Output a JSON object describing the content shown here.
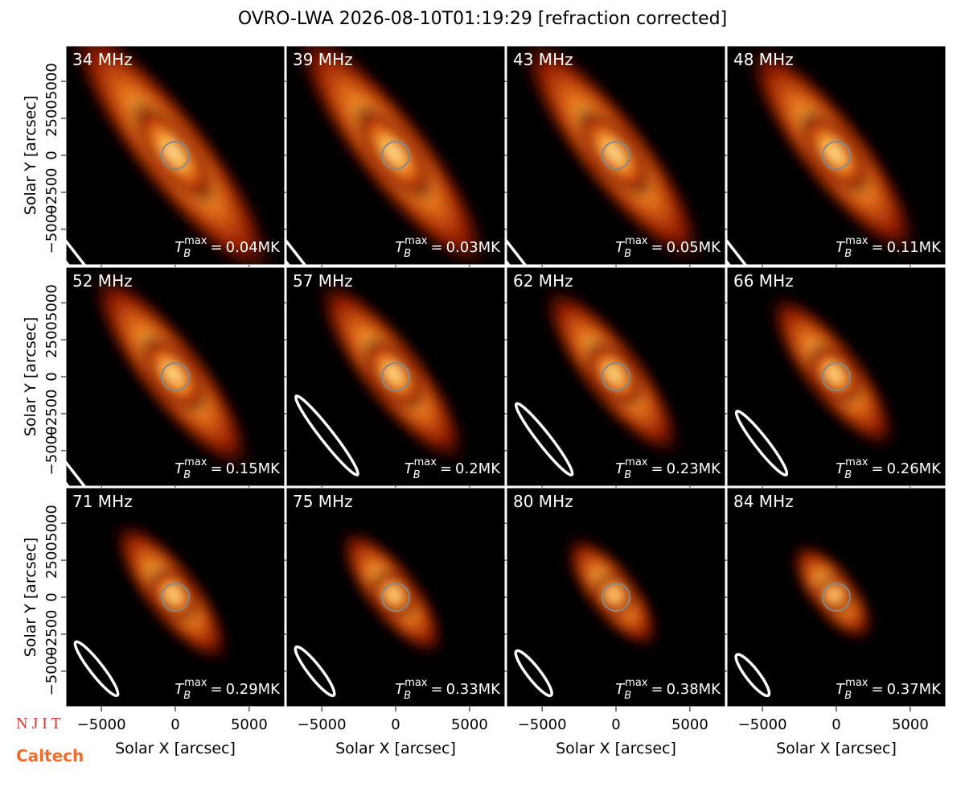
{
  "title": "OVRO-LWA 2026-08-10T01:19:29 [refraction corrected]",
  "xlabel": "Solar X [arcsec]",
  "ylabel": "Solar Y [arcsec]",
  "xlim": [
    -7400,
    7400
  ],
  "ylim": [
    -7400,
    7400
  ],
  "xticks": [
    {
      "value": -5000,
      "label": "−5000"
    },
    0,
    5000
  ],
  "yticks": [
    {
      "value": -5000,
      "label": "−5000"
    },
    {
      "value": -2500,
      "label": "−2500"
    },
    0,
    2500,
    5000
  ],
  "tmax_symbol": "T",
  "tmax_sub": "B",
  "tmax_sup": "max",
  "tmax_eq": "=",
  "panels": [
    {
      "label": "34 MHz",
      "tmax": "0.04MK"
    },
    {
      "label": "39 MHz",
      "tmax": "0.03MK"
    },
    {
      "label": "43 MHz",
      "tmax": "0.05MK"
    },
    {
      "label": "48 MHz",
      "tmax": "0.11MK"
    },
    {
      "label": "52 MHz",
      "tmax": "0.15MK"
    },
    {
      "label": "57 MHz",
      "tmax": "0.2MK"
    },
    {
      "label": "62 MHz",
      "tmax": "0.23MK"
    },
    {
      "label": "66 MHz",
      "tmax": "0.26MK"
    },
    {
      "label": "71 MHz",
      "tmax": "0.29MK"
    },
    {
      "label": "75 MHz",
      "tmax": "0.33MK"
    },
    {
      "label": "80 MHz",
      "tmax": "0.38MK"
    },
    {
      "label": "84 MHz",
      "tmax": "0.37MK"
    }
  ],
  "logos": [
    "N J I T",
    "Caltech"
  ]
}
